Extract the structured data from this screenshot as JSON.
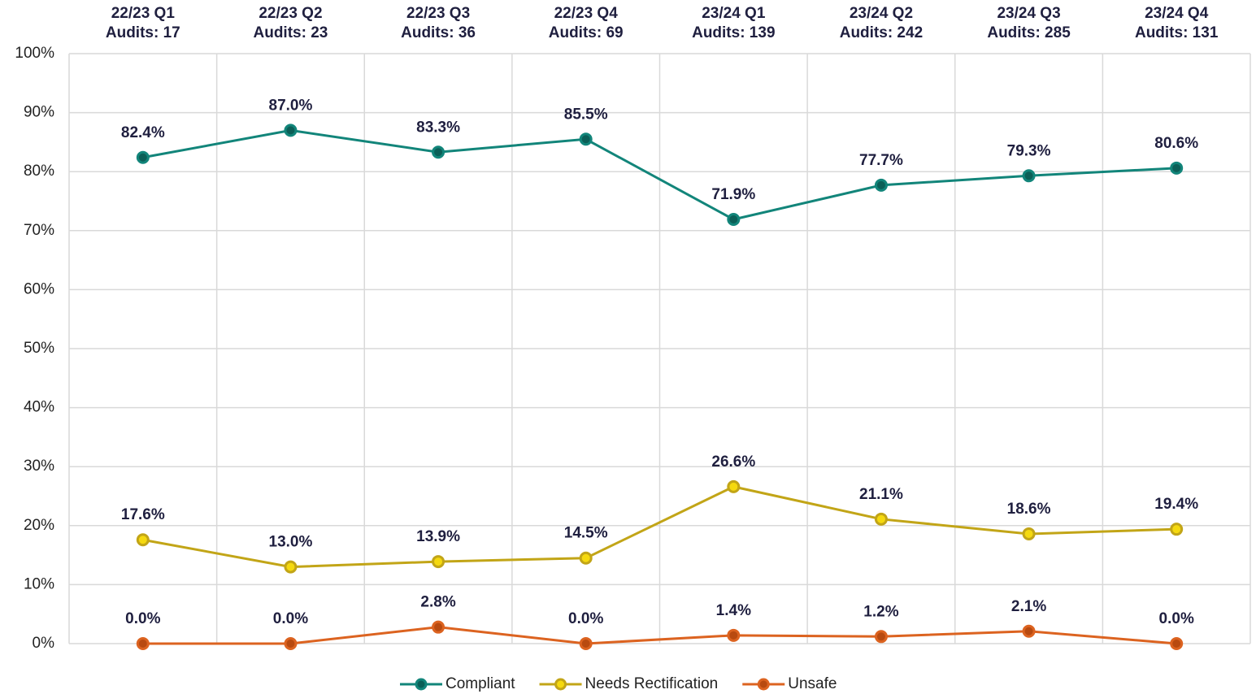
{
  "chart_data": {
    "type": "line",
    "categories": [
      "22/23 Q1",
      "22/23 Q2",
      "22/23 Q3",
      "22/23 Q4",
      "23/24 Q1",
      "23/24 Q2",
      "23/24 Q3",
      "23/24 Q4"
    ],
    "category_sublabels": [
      "Audits: 17",
      "Audits: 23",
      "Audits: 36",
      "Audits: 69",
      "Audits: 139",
      "Audits: 242",
      "Audits: 285",
      "Audits: 131"
    ],
    "series": [
      {
        "name": "Compliant",
        "color": "#12857a",
        "marker_color": "#0b5f57",
        "values": [
          82.4,
          87.0,
          83.3,
          85.5,
          71.9,
          77.7,
          79.3,
          80.6
        ],
        "value_labels": [
          "82.4%",
          "87.0%",
          "83.3%",
          "85.5%",
          "71.9%",
          "77.7%",
          "79.3%",
          "80.6%"
        ]
      },
      {
        "name": "Needs Rectification",
        "color": "#c2a517",
        "marker_color": "#f5d90f",
        "values": [
          17.6,
          13.0,
          13.9,
          14.5,
          26.6,
          21.1,
          18.6,
          19.4
        ],
        "value_labels": [
          "17.6%",
          "13.0%",
          "13.9%",
          "14.5%",
          "26.6%",
          "21.1%",
          "18.6%",
          "19.4%"
        ]
      },
      {
        "name": "Unsafe",
        "color": "#dc6320",
        "marker_color": "#b84a10",
        "values": [
          0.0,
          0.0,
          2.8,
          0.0,
          1.4,
          1.2,
          2.1,
          0.0
        ],
        "value_labels": [
          "0.0%",
          "0.0%",
          "2.8%",
          "0.0%",
          "1.4%",
          "1.2%",
          "2.1%",
          "0.0%"
        ]
      }
    ],
    "ylim": [
      0,
      100
    ],
    "yticks": [
      {
        "value": 0,
        "label": "0%"
      },
      {
        "value": 10,
        "label": "10%"
      },
      {
        "value": 20,
        "label": "20%"
      },
      {
        "value": 30,
        "label": "30%"
      },
      {
        "value": 40,
        "label": "40%"
      },
      {
        "value": 50,
        "label": "50%"
      },
      {
        "value": 60,
        "label": "60%"
      },
      {
        "value": 70,
        "label": "70%"
      },
      {
        "value": 80,
        "label": "80%"
      },
      {
        "value": 90,
        "label": "90%"
      },
      {
        "value": 100,
        "label": "100%"
      }
    ],
    "grid": true,
    "legend": "bottom"
  }
}
